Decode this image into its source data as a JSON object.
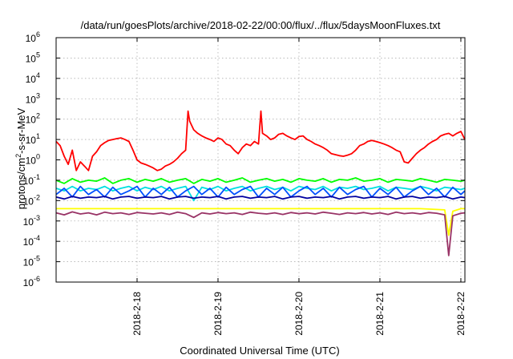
{
  "chart_data": {
    "type": "line",
    "title": "/data/run/goesPlots/archive/2018-02-22/00:00/flux/../flux/5daysMoonFluxes.txt",
    "xlabel": "Coordinated Universal Time (UTC)",
    "ylabel": {
      "prefix": "protons/cm",
      "sup": "2",
      "suffix": "-s-sr-MeV"
    },
    "x_unit": "days",
    "xlim": [
      0,
      5.05
    ],
    "ylim": [
      1e-06,
      1000000.0
    ],
    "yscale": "log",
    "grid": true,
    "legend": "none",
    "x_ticks": [
      {
        "x": 1,
        "label": "2018-2-18"
      },
      {
        "x": 2,
        "label": "2018-2-19"
      },
      {
        "x": 3,
        "label": "2018-2-20"
      },
      {
        "x": 4,
        "label": "2018-2-21"
      },
      {
        "x": 5,
        "label": "2018-2-22"
      }
    ],
    "y_ticks": [
      {
        "exp": -6,
        "base": "10",
        "sup": "-6"
      },
      {
        "exp": -5,
        "base": "10",
        "sup": "-5"
      },
      {
        "exp": -4,
        "base": "10",
        "sup": "-4"
      },
      {
        "exp": -3,
        "base": "10",
        "sup": "-3"
      },
      {
        "exp": -2,
        "base": "10",
        "sup": "-2"
      },
      {
        "exp": -1,
        "base": "10",
        "sup": "-1"
      },
      {
        "exp": 0,
        "base": "10",
        "sup": "0"
      },
      {
        "exp": 1,
        "base": "10",
        "sup": "1"
      },
      {
        "exp": 2,
        "base": "10",
        "sup": "2"
      },
      {
        "exp": 3,
        "base": "10",
        "sup": "3"
      },
      {
        "exp": 4,
        "base": "10",
        "sup": "4"
      },
      {
        "exp": 5,
        "base": "10",
        "sup": "5"
      },
      {
        "exp": 6,
        "base": "10",
        "sup": "6"
      }
    ],
    "series": [
      {
        "color": "#ff0000",
        "x": [
          0,
          0.05,
          0.1,
          0.15,
          0.2,
          0.25,
          0.3,
          0.35,
          0.4,
          0.45,
          0.5,
          0.55,
          0.6,
          0.65,
          0.7,
          0.75,
          0.8,
          0.85,
          0.9,
          0.95,
          1.0,
          1.05,
          1.1,
          1.15,
          1.2,
          1.25,
          1.3,
          1.35,
          1.4,
          1.45,
          1.5,
          1.55,
          1.6,
          1.63,
          1.65,
          1.7,
          1.75,
          1.8,
          1.85,
          1.9,
          1.95,
          2.0,
          2.05,
          2.1,
          2.15,
          2.2,
          2.25,
          2.3,
          2.35,
          2.4,
          2.45,
          2.5,
          2.53,
          2.55,
          2.6,
          2.65,
          2.7,
          2.75,
          2.8,
          2.85,
          2.9,
          2.95,
          3.0,
          3.05,
          3.1,
          3.15,
          3.2,
          3.25,
          3.3,
          3.35,
          3.4,
          3.45,
          3.5,
          3.55,
          3.6,
          3.65,
          3.7,
          3.75,
          3.8,
          3.85,
          3.9,
          3.95,
          4.0,
          4.05,
          4.1,
          4.15,
          4.2,
          4.25,
          4.3,
          4.35,
          4.4,
          4.45,
          4.5,
          4.55,
          4.6,
          4.65,
          4.7,
          4.75,
          4.8,
          4.85,
          4.9,
          4.95,
          5.0,
          5.05
        ],
        "values": [
          8,
          5,
          1.5,
          0.6,
          3,
          0.3,
          0.8,
          0.5,
          0.3,
          1.5,
          2.5,
          5,
          7,
          9,
          10,
          11,
          12,
          10,
          8,
          3,
          1,
          0.7,
          0.6,
          0.5,
          0.4,
          0.3,
          0.35,
          0.5,
          0.6,
          0.8,
          1.2,
          2,
          3,
          250,
          80,
          30,
          20,
          15,
          12,
          10,
          8,
          12,
          10,
          6,
          5,
          3,
          2,
          4,
          6,
          5,
          8,
          6,
          250,
          20,
          15,
          10,
          12,
          18,
          20,
          15,
          12,
          10,
          14,
          15,
          10,
          8,
          6,
          5,
          4,
          3,
          2,
          1.8,
          1.6,
          1.5,
          1.7,
          2,
          3,
          5,
          6,
          8,
          9,
          8,
          7,
          6,
          5,
          4,
          3,
          2.5,
          0.8,
          0.7,
          1.2,
          2,
          3,
          4,
          6,
          8,
          10,
          15,
          18,
          20,
          15,
          20,
          25,
          10
        ]
      },
      {
        "color": "#00ff00",
        "x": [
          0,
          0.1,
          0.2,
          0.3,
          0.4,
          0.5,
          0.6,
          0.7,
          0.8,
          0.9,
          1.0,
          1.1,
          1.2,
          1.3,
          1.4,
          1.5,
          1.6,
          1.7,
          1.8,
          1.9,
          2.0,
          2.1,
          2.2,
          2.3,
          2.4,
          2.5,
          2.6,
          2.7,
          2.8,
          2.9,
          3.0,
          3.1,
          3.2,
          3.3,
          3.4,
          3.5,
          3.6,
          3.7,
          3.8,
          3.9,
          4.0,
          4.1,
          4.2,
          4.3,
          4.4,
          4.5,
          4.6,
          4.7,
          4.8,
          4.9,
          5.0,
          5.05
        ],
        "values": [
          0.1,
          0.07,
          0.12,
          0.08,
          0.1,
          0.09,
          0.13,
          0.07,
          0.1,
          0.12,
          0.08,
          0.11,
          0.09,
          0.12,
          0.08,
          0.1,
          0.12,
          0.07,
          0.11,
          0.09,
          0.12,
          0.08,
          0.1,
          0.13,
          0.08,
          0.1,
          0.12,
          0.09,
          0.11,
          0.08,
          0.12,
          0.1,
          0.09,
          0.12,
          0.08,
          0.11,
          0.1,
          0.13,
          0.09,
          0.1,
          0.12,
          0.08,
          0.11,
          0.1,
          0.09,
          0.12,
          0.1,
          0.08,
          0.11,
          0.1,
          0.09,
          0.1
        ]
      },
      {
        "color": "#00e0e0",
        "x": [
          0,
          0.1,
          0.2,
          0.3,
          0.4,
          0.5,
          0.6,
          0.7,
          0.8,
          0.9,
          1.0,
          1.1,
          1.2,
          1.3,
          1.4,
          1.5,
          1.6,
          1.7,
          1.8,
          1.9,
          2.0,
          2.1,
          2.2,
          2.3,
          2.4,
          2.5,
          2.6,
          2.7,
          2.8,
          2.9,
          3.0,
          3.1,
          3.2,
          3.3,
          3.4,
          3.5,
          3.6,
          3.7,
          3.8,
          3.9,
          4.0,
          4.1,
          4.2,
          4.3,
          4.4,
          4.5,
          4.6,
          4.7,
          4.8,
          4.9,
          5.0,
          5.05
        ],
        "values": [
          0.04,
          0.03,
          0.05,
          0.03,
          0.04,
          0.035,
          0.05,
          0.03,
          0.04,
          0.05,
          0.03,
          0.045,
          0.035,
          0.05,
          0.03,
          0.04,
          0.05,
          0.01,
          0.045,
          0.035,
          0.05,
          0.03,
          0.04,
          0.05,
          0.03,
          0.04,
          0.05,
          0.035,
          0.045,
          0.03,
          0.05,
          0.04,
          0.035,
          0.05,
          0.03,
          0.045,
          0.04,
          0.05,
          0.035,
          0.04,
          0.05,
          0.03,
          0.045,
          0.04,
          0.035,
          0.05,
          0.04,
          0.03,
          0.045,
          0.04,
          0.035,
          0.04
        ]
      },
      {
        "color": "#0050ff",
        "x": [
          0,
          0.1,
          0.2,
          0.3,
          0.4,
          0.5,
          0.6,
          0.7,
          0.8,
          0.9,
          1.0,
          1.1,
          1.2,
          1.3,
          1.4,
          1.5,
          1.6,
          1.7,
          1.8,
          1.9,
          2.0,
          2.1,
          2.2,
          2.3,
          2.4,
          2.5,
          2.6,
          2.7,
          2.8,
          2.9,
          3.0,
          3.1,
          3.2,
          3.3,
          3.4,
          3.5,
          3.6,
          3.7,
          3.8,
          3.9,
          4.0,
          4.1,
          4.2,
          4.3,
          4.4,
          4.5,
          4.6,
          4.7,
          4.8,
          4.9,
          5.0,
          5.05
        ],
        "values": [
          0.02,
          0.04,
          0.015,
          0.05,
          0.02,
          0.035,
          0.015,
          0.045,
          0.02,
          0.03,
          0.05,
          0.015,
          0.04,
          0.02,
          0.045,
          0.015,
          0.03,
          0.05,
          0.02,
          0.04,
          0.015,
          0.045,
          0.02,
          0.035,
          0.05,
          0.015,
          0.04,
          0.02,
          0.045,
          0.015,
          0.03,
          0.05,
          0.02,
          0.04,
          0.015,
          0.045,
          0.02,
          0.035,
          0.05,
          0.015,
          0.04,
          0.02,
          0.045,
          0.015,
          0.03,
          0.05,
          0.02,
          0.04,
          0.015,
          0.045,
          0.02,
          0.03
        ]
      },
      {
        "color": "#0000a0",
        "x": [
          0,
          0.1,
          0.2,
          0.3,
          0.4,
          0.5,
          0.6,
          0.7,
          0.8,
          0.9,
          1.0,
          1.1,
          1.2,
          1.3,
          1.4,
          1.5,
          1.6,
          1.7,
          1.8,
          1.9,
          2.0,
          2.1,
          2.2,
          2.3,
          2.4,
          2.5,
          2.6,
          2.7,
          2.8,
          2.9,
          3.0,
          3.1,
          3.2,
          3.3,
          3.4,
          3.5,
          3.6,
          3.7,
          3.8,
          3.9,
          4.0,
          4.1,
          4.2,
          4.3,
          4.4,
          4.5,
          4.6,
          4.7,
          4.8,
          4.9,
          5.0,
          5.05
        ],
        "values": [
          0.015,
          0.012,
          0.016,
          0.013,
          0.015,
          0.014,
          0.016,
          0.012,
          0.015,
          0.016,
          0.013,
          0.015,
          0.014,
          0.016,
          0.012,
          0.015,
          0.016,
          0.013,
          0.015,
          0.014,
          0.016,
          0.012,
          0.015,
          0.016,
          0.013,
          0.015,
          0.014,
          0.016,
          0.012,
          0.015,
          0.016,
          0.013,
          0.015,
          0.014,
          0.016,
          0.012,
          0.015,
          0.016,
          0.013,
          0.015,
          0.014,
          0.016,
          0.012,
          0.015,
          0.016,
          0.013,
          0.015,
          0.014,
          0.016,
          0.012,
          0.015,
          0.014
        ]
      },
      {
        "color": "#ffff00",
        "x": [
          0,
          0.5,
          1.0,
          1.5,
          2.0,
          2.5,
          3.0,
          3.5,
          4.0,
          4.5,
          4.8,
          4.85,
          4.9,
          5.0,
          5.05
        ],
        "values": [
          0.004,
          0.004,
          0.004,
          0.004,
          0.004,
          0.004,
          0.004,
          0.004,
          0.004,
          0.004,
          0.0035,
          0.0002,
          0.003,
          0.004,
          0.004
        ]
      },
      {
        "color": "#993366",
        "x": [
          0,
          0.1,
          0.2,
          0.3,
          0.4,
          0.5,
          0.6,
          0.7,
          0.8,
          0.9,
          1.0,
          1.1,
          1.2,
          1.3,
          1.4,
          1.5,
          1.6,
          1.7,
          1.8,
          1.9,
          2.0,
          2.1,
          2.2,
          2.3,
          2.4,
          2.5,
          2.6,
          2.7,
          2.8,
          2.9,
          3.0,
          3.1,
          3.2,
          3.3,
          3.4,
          3.5,
          3.6,
          3.7,
          3.8,
          3.9,
          4.0,
          4.1,
          4.2,
          4.3,
          4.4,
          4.5,
          4.6,
          4.7,
          4.8,
          4.85,
          4.9,
          5.0,
          5.05
        ],
        "values": [
          0.0025,
          0.002,
          0.0028,
          0.0022,
          0.0025,
          0.002,
          0.0027,
          0.0023,
          0.0025,
          0.0021,
          0.0026,
          0.0024,
          0.0022,
          0.0025,
          0.0021,
          0.0027,
          0.0023,
          0.0015,
          0.0025,
          0.0022,
          0.0026,
          0.0023,
          0.0025,
          0.0021,
          0.0027,
          0.0024,
          0.0022,
          0.0025,
          0.0021,
          0.0026,
          0.0023,
          0.0025,
          0.0022,
          0.0027,
          0.0024,
          0.0021,
          0.0025,
          0.0023,
          0.0026,
          0.0022,
          0.0025,
          0.0021,
          0.0027,
          0.0023,
          0.0025,
          0.0022,
          0.0026,
          0.0024,
          0.002,
          2e-05,
          0.0018,
          0.0024,
          0.0025
        ]
      }
    ]
  }
}
